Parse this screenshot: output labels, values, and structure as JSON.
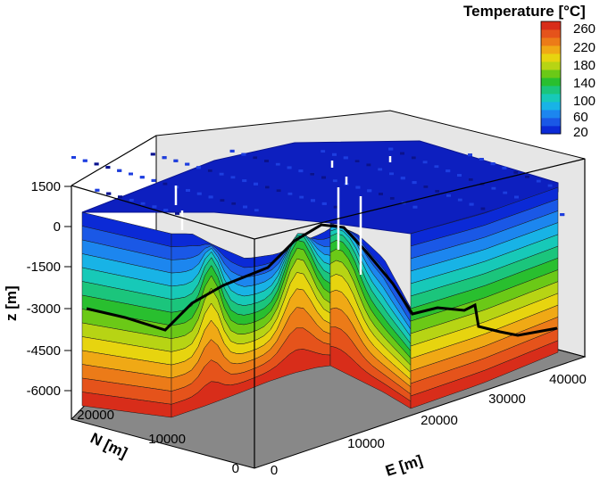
{
  "chart_data": {
    "type": "3d-block-contour",
    "colorbar": {
      "title": "Temperature [°C]",
      "ticks": [
        "260",
        "220",
        "180",
        "140",
        "100",
        "60",
        "20"
      ],
      "range": [
        20,
        270
      ],
      "colors": [
        "#0b2ad6",
        "#1a58e6",
        "#1c86ef",
        "#18b3e6",
        "#17c9b8",
        "#1bc57c",
        "#29bf2f",
        "#6bc917",
        "#b7d414",
        "#e7d40f",
        "#f0a915",
        "#ec7b18",
        "#e5531b",
        "#d82d1a"
      ]
    },
    "axes": {
      "x": {
        "label": "E [m]",
        "ticks": [
          "0",
          "10000",
          "20000",
          "30000",
          "40000"
        ],
        "range": [
          0,
          40000
        ]
      },
      "y": {
        "label": "N [m]",
        "ticks": [
          "0",
          "10000",
          "20000"
        ],
        "range": [
          0,
          25000
        ]
      },
      "z": {
        "label": "z [m]",
        "ticks": [
          "1500",
          "0",
          "-1500",
          "-3000",
          "-4500",
          "-6000"
        ],
        "range": [
          -6000,
          1500
        ]
      }
    }
  }
}
